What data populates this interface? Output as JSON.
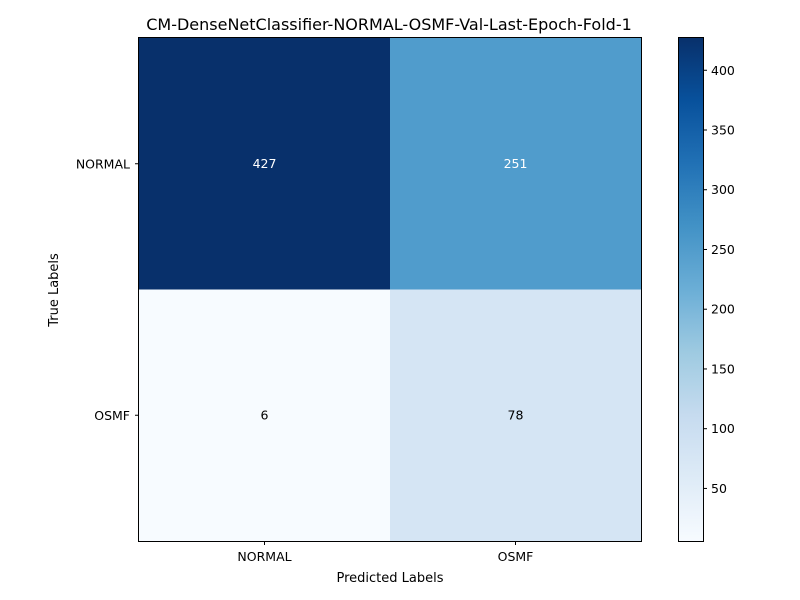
{
  "chart_data": {
    "type": "heatmap",
    "title": "CM-DenseNetClassifier-NORMAL-OSMF-Val-Last-Epoch-Fold-1",
    "xlabel": "Predicted Labels",
    "ylabel": "True Labels",
    "x_categories": [
      "NORMAL",
      "OSMF"
    ],
    "y_categories": [
      "NORMAL",
      "OSMF"
    ],
    "values": [
      [
        427,
        251
      ],
      [
        6,
        78
      ]
    ],
    "colormap": "Blues",
    "colorbar": {
      "range": [
        6,
        427
      ],
      "ticks": [
        50,
        100,
        150,
        200,
        250,
        300,
        350,
        400
      ],
      "tick_labels": [
        "50",
        "100",
        "150",
        "200",
        "250",
        "300",
        "350",
        "400"
      ]
    },
    "grid": false,
    "legend": "none"
  }
}
